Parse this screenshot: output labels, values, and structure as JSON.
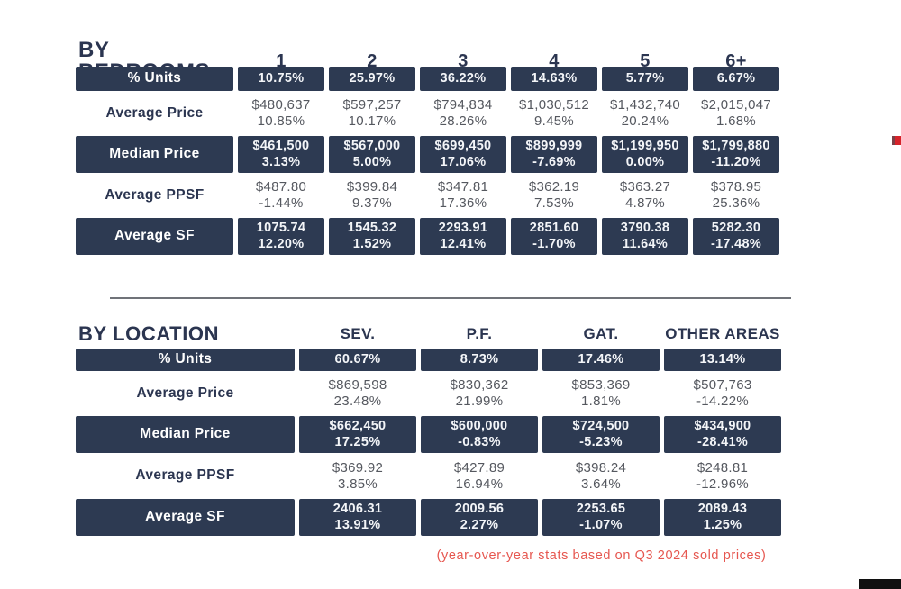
{
  "chart_data": [
    {
      "type": "table",
      "title": "BY BEDROOMS",
      "columns": [
        "1",
        "2",
        "3",
        "4",
        "5",
        "6+"
      ],
      "rows": [
        {
          "label": "% Units",
          "values": [
            "10.75%",
            "25.97%",
            "36.22%",
            "14.63%",
            "5.77%",
            "6.67%"
          ]
        },
        {
          "label": "Average Price",
          "values": [
            "$480,637",
            "$597,257",
            "$794,834",
            "$1,030,512",
            "$1,432,740",
            "$2,015,047"
          ],
          "yoy": [
            "10.85%",
            "10.17%",
            "28.26%",
            "9.45%",
            "20.24%",
            "1.68%"
          ]
        },
        {
          "label": "Median Price",
          "values": [
            "$461,500",
            "$567,000",
            "$699,450",
            "$899,999",
            "$1,199,950",
            "$1,799,880"
          ],
          "yoy": [
            "3.13%",
            "5.00%",
            "17.06%",
            "-7.69%",
            "0.00%",
            "-11.20%"
          ]
        },
        {
          "label": "Average PPSF",
          "values": [
            "$487.80",
            "$399.84",
            "$347.81",
            "$362.19",
            "$363.27",
            "$378.95"
          ],
          "yoy": [
            "-1.44%",
            "9.37%",
            "17.36%",
            "7.53%",
            "4.87%",
            "25.36%"
          ]
        },
        {
          "label": "Average SF",
          "values": [
            "1075.74",
            "1545.32",
            "2293.91",
            "2851.60",
            "3790.38",
            "5282.30"
          ],
          "yoy": [
            "12.20%",
            "1.52%",
            "12.41%",
            "-1.70%",
            "11.64%",
            "-17.48%"
          ]
        }
      ]
    },
    {
      "type": "table",
      "title": "BY LOCATION",
      "columns": [
        "SEV.",
        "P.F.",
        "GAT.",
        "OTHER AREAS"
      ],
      "rows": [
        {
          "label": "% Units",
          "values": [
            "60.67%",
            "8.73%",
            "17.46%",
            "13.14%"
          ]
        },
        {
          "label": "Average Price",
          "values": [
            "$869,598",
            "$830,362",
            "$853,369",
            "$507,763"
          ],
          "yoy": [
            "23.48%",
            "21.99%",
            "1.81%",
            "-14.22%"
          ]
        },
        {
          "label": "Median Price",
          "values": [
            "$662,450",
            "$600,000",
            "$724,500",
            "$434,900"
          ],
          "yoy": [
            "17.25%",
            "-0.83%",
            "-5.23%",
            "-28.41%"
          ]
        },
        {
          "label": "Average PPSF",
          "values": [
            "$369.92",
            "$427.89",
            "$398.24",
            "$248.81"
          ],
          "yoy": [
            "3.85%",
            "16.94%",
            "3.64%",
            "-12.96%"
          ]
        },
        {
          "label": "Average SF",
          "values": [
            "2406.31",
            "2009.56",
            "2253.65",
            "2089.43"
          ],
          "yoy": [
            "13.91%",
            "2.27%",
            "-1.07%",
            "1.25%"
          ]
        }
      ]
    }
  ],
  "caption": "(year-over-year stats based on Q3 2024 sold prices)",
  "colors": {
    "navy_cell": "#2d3a52",
    "title_text": "#2b3550",
    "light_value_text": "#55585f",
    "caption_red": "#e65750",
    "accent_square_red": "#d6232a",
    "accent_square_edge": "#7b4047",
    "divider_gray": "#707379",
    "corner_black": "#101010"
  }
}
